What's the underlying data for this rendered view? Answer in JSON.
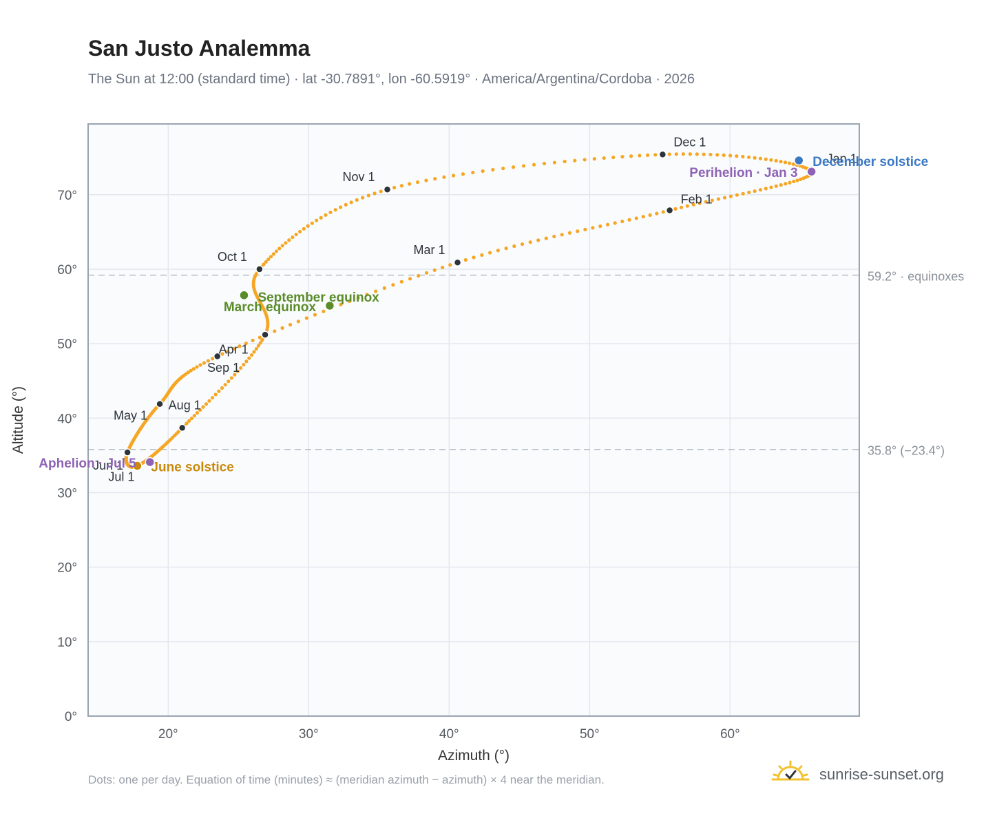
{
  "header": {
    "title": "San Justo Analemma",
    "subtitle": "The Sun at 12:00 (standard time) · lat -30.7891°, lon -60.5919° · America/Argentina/Cordoba · 2026"
  },
  "footer": {
    "note": "Dots: one per day. Equation of time (minutes) ≈ (meridian azimuth − azimuth) × 4 near the meridian.",
    "brand": "sunrise-sunset.org"
  },
  "colors": {
    "path": "#f5a623",
    "month_dot": "#2d333b",
    "equinox": "#5b8c2a",
    "june_solstice": "#c98a0c",
    "december_solstice": "#3a78c2",
    "apsis": "#8e63b5",
    "plot_bg": "#f9fbfd",
    "grid": "#e3e8ee",
    "border": "#9aa4b1",
    "ref_line": "#b7bec6",
    "brand_sun": "#f2c12e"
  },
  "chart_data": {
    "type": "scatter",
    "xlabel": "Azimuth (°)",
    "ylabel": "Altitude (°)",
    "xlim": [
      14.3,
      69.2
    ],
    "ylim": [
      0,
      79.5
    ],
    "x_ticks": [
      20,
      30,
      40,
      50,
      60
    ],
    "x_tick_labels": [
      "20°",
      "30°",
      "40°",
      "50°",
      "60°"
    ],
    "y_ticks": [
      0,
      10,
      20,
      30,
      40,
      50,
      60,
      70
    ],
    "y_tick_labels": [
      "0°",
      "10°",
      "20°",
      "30°",
      "40°",
      "50°",
      "60°",
      "70°"
    ],
    "grid": true,
    "month_markers": [
      {
        "label": "Jan 1",
        "x": 65.8,
        "y": 73.0
      },
      {
        "label": "Feb 1",
        "x": 55.7,
        "y": 67.9
      },
      {
        "label": "Mar 1",
        "x": 40.6,
        "y": 60.9
      },
      {
        "label": "Apr 1",
        "x": 23.5,
        "y": 48.3
      },
      {
        "label": "May 1",
        "x": 19.4,
        "y": 41.9
      },
      {
        "label": "Jun 1",
        "x": 17.1,
        "y": 35.4
      },
      {
        "label": "Jul 1",
        "x": 17.8,
        "y": 33.6
      },
      {
        "label": "Aug 1",
        "x": 21.0,
        "y": 38.7
      },
      {
        "label": "Sep 1",
        "x": 26.9,
        "y": 51.2
      },
      {
        "label": "Oct 1",
        "x": 26.5,
        "y": 60.0
      },
      {
        "label": "Nov 1",
        "x": 35.6,
        "y": 70.7
      },
      {
        "label": "Dec 1",
        "x": 55.2,
        "y": 75.4
      }
    ],
    "events": [
      {
        "label": "March equinox",
        "x": 31.5,
        "y": 55.1,
        "kind": "equinox"
      },
      {
        "label": "September equinox",
        "x": 25.4,
        "y": 56.5,
        "kind": "equinox"
      },
      {
        "label": "June solstice",
        "x": 17.8,
        "y": 33.6,
        "kind": "june_solstice"
      },
      {
        "label": "December solstice",
        "x": 64.9,
        "y": 74.6,
        "kind": "december_solstice"
      },
      {
        "label": "Aphelion · Jul 5",
        "x": 18.7,
        "y": 34.1,
        "kind": "apsis"
      },
      {
        "label": "Perihelion · Jan 3",
        "x": 65.8,
        "y": 73.1,
        "kind": "apsis"
      }
    ],
    "reference_lines": [
      {
        "y": 59.2,
        "label": "59.2° · equinoxes"
      },
      {
        "y": 35.8,
        "label": "35.8° (−23.4°)"
      }
    ]
  }
}
